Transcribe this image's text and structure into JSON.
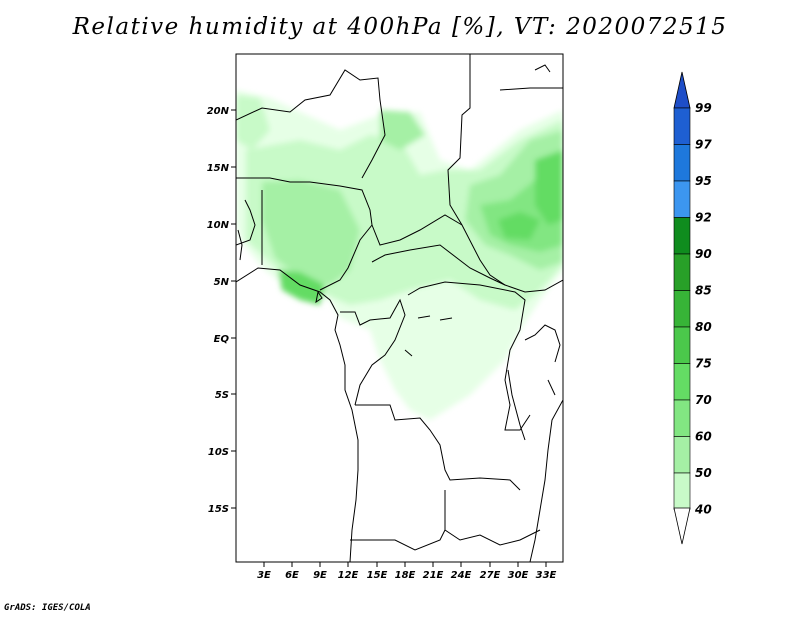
{
  "title": "Relative humidity at 400hPa [%], VT: 2020072515",
  "credit": "GrADS: IGES/COLA",
  "lat_ticks": [
    "20N",
    "15N",
    "10N",
    "5N",
    "EQ",
    "5S",
    "10S",
    "15S"
  ],
  "lon_ticks": [
    "3E",
    "6E",
    "9E",
    "12E",
    "15E",
    "18E",
    "21E",
    "24E",
    "27E",
    "30E",
    "33E"
  ],
  "colorbar": {
    "labels": [
      "99",
      "97",
      "95",
      "92",
      "90",
      "85",
      "80",
      "75",
      "70",
      "60",
      "50",
      "40"
    ],
    "colors": [
      "#1e5fd2",
      "#1e78dc",
      "#3c96f0",
      "#0f8c1e",
      "#28a028",
      "#37b437",
      "#4bc84b",
      "#64dc64",
      "#82e682",
      "#a5f0a5",
      "#c8fac8",
      "#e6ffe6"
    ],
    "top_arrow_color": "#1e4ec8",
    "bottom_arrow_color": "#ffffff"
  }
}
